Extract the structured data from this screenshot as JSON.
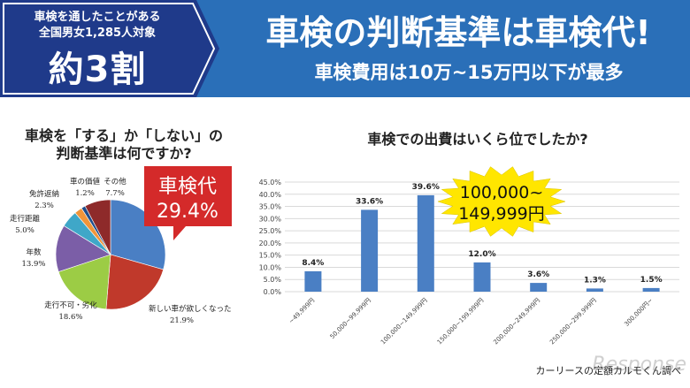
{
  "header": {
    "badge_line1": "車検を通したことがある",
    "badge_line2": "全国男女1,285人対象",
    "badge_big": "約3割",
    "title": "車検の判断基準は車検代!",
    "subtitle": "車検費用は10万~15万円以下が最多"
  },
  "colors": {
    "header_bg": "#2a6fb8",
    "badge_bg": "#1f3a8a",
    "callout_red": "#d42a2a",
    "callout_yellow": "#ffe600",
    "bar": "#4a7fc4"
  },
  "chart_data": [
    {
      "type": "pie",
      "title": "車検を「する」か「しない」の\n判断基準は何ですか?",
      "slices": [
        {
          "label": "車検代",
          "value": 29.4,
          "color": "#4a7fc4"
        },
        {
          "label": "新しい車が欲しくなった",
          "value": 21.9,
          "color": "#c0392b"
        },
        {
          "label": "走行不可・劣化",
          "value": 18.6,
          "color": "#9ccc45"
        },
        {
          "label": "年数",
          "value": 13.9,
          "color": "#7b5ea7"
        },
        {
          "label": "走行距離",
          "value": 5.0,
          "color": "#3fa7c8"
        },
        {
          "label": "免許返納",
          "value": 2.3,
          "color": "#f0953a"
        },
        {
          "label": "車の価値",
          "value": 1.2,
          "color": "#1f4e8c"
        },
        {
          "label": "その他",
          "value": 7.7,
          "color": "#8e2a2a"
        }
      ],
      "callout": {
        "label": "車検代",
        "value": "29.4%"
      }
    },
    {
      "type": "bar",
      "title": "車検での出費はいくら位でしたか?",
      "categories": [
        "~49,999円",
        "50,000~99,999円",
        "100,000~149,999円",
        "150,000~199,999円",
        "200,000~249,999円",
        "250,000~299,999円",
        "300,000円~"
      ],
      "values": [
        8.4,
        33.6,
        39.6,
        12.0,
        3.6,
        1.3,
        1.5
      ],
      "value_labels": [
        "8.4%",
        "33.6%",
        "39.6%",
        "12.0%",
        "3.6%",
        "1.3%",
        "1.5%"
      ],
      "y_ticks": [
        "0.0%",
        "5.0%",
        "10.0%",
        "15.0%",
        "20.0%",
        "25.0%",
        "30.0%",
        "35.0%",
        "40.0%",
        "45.0%"
      ],
      "ylim": [
        0,
        45
      ],
      "grid": true,
      "callout": "100,000~\n149,999円"
    }
  ],
  "footer": {
    "credit": "カーリースの定額カルモくん調べ",
    "watermark": "Response"
  }
}
